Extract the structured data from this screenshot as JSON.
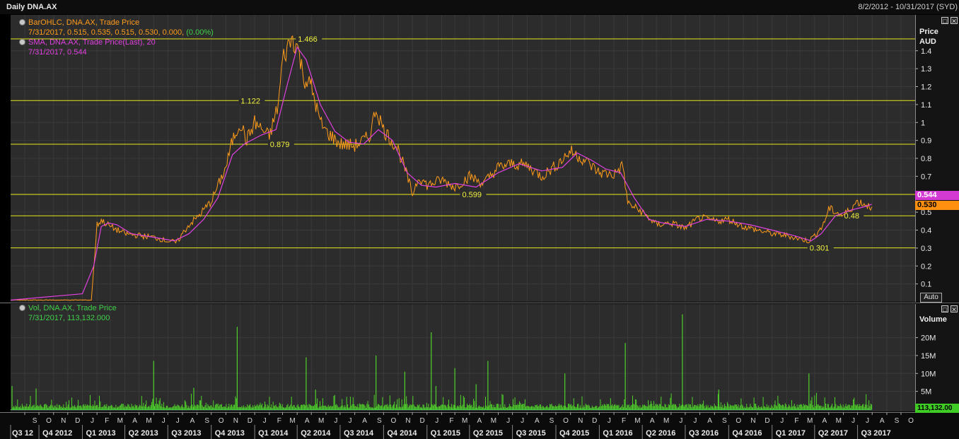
{
  "window": {
    "title": "Daily DNA.AX",
    "date_range": "8/2/2012 - 10/31/2017 (SYD)"
  },
  "price_panel": {
    "legend": [
      {
        "title": "BarOHLC, DNA.AX, Trade Price",
        "detail": "7/31/2017, 0.515, 0.535, 0.515, 0.530, 0.000,",
        "detail_extra": "(0.00%)",
        "color": "#ff9c1a",
        "extra_color": "#3fd14a"
      },
      {
        "title": "SMA, DNA.AX, Trade Price(Last), 20",
        "detail": "7/31/2017, 0.544",
        "color": "#e040e0"
      }
    ],
    "axis_title": "Price",
    "axis_unit": "AUD",
    "auto_label": "Auto",
    "last_sma_tag": "0.544",
    "last_price_tag": "0.530"
  },
  "volume_panel": {
    "legend": {
      "title": "Vol, DNA.AX, Trade Price",
      "detail": "7/31/2017, 113,132.000",
      "color": "#3fd14a"
    },
    "axis_title": "Volume",
    "last_volume_tag": "113,132.00"
  },
  "chart_data": [
    {
      "type": "line",
      "title": "",
      "series": [
        {
          "name": "BarOHLC, DNA.AX, Trade Price",
          "color": "#ff9c1a",
          "x": [
            "2012-08-02",
            "2012-10-01",
            "2012-12-01",
            "2013-01-20",
            "2013-02-01",
            "2013-02-10",
            "2013-03-01",
            "2013-04-01",
            "2013-05-01",
            "2013-06-01",
            "2013-07-01",
            "2013-07-20",
            "2013-08-01",
            "2013-08-15",
            "2013-09-01",
            "2013-10-01",
            "2013-11-01",
            "2013-11-15",
            "2013-12-01",
            "2013-12-15",
            "2014-01-01",
            "2014-02-01",
            "2014-02-20",
            "2014-03-01",
            "2014-03-20",
            "2014-04-01",
            "2014-04-15",
            "2014-05-01",
            "2014-05-20",
            "2014-06-01",
            "2014-07-01",
            "2014-08-01",
            "2014-09-01",
            "2014-09-15",
            "2014-10-01",
            "2014-11-01",
            "2014-11-20",
            "2014-12-01",
            "2014-12-15",
            "2015-01-01",
            "2015-02-01",
            "2015-03-01",
            "2015-04-01",
            "2015-05-01",
            "2015-06-01",
            "2015-07-01",
            "2015-08-01",
            "2015-09-01",
            "2015-10-01",
            "2015-11-01",
            "2015-12-01",
            "2016-01-01",
            "2016-02-01",
            "2016-02-20",
            "2016-03-01",
            "2016-04-01",
            "2016-05-01",
            "2016-06-01",
            "2016-07-01",
            "2016-08-01",
            "2016-09-01",
            "2016-10-01",
            "2016-11-01",
            "2016-12-01",
            "2017-01-01",
            "2017-02-01",
            "2017-03-01",
            "2017-03-20",
            "2017-04-01",
            "2017-04-20",
            "2017-05-01",
            "2017-06-01",
            "2017-07-01",
            "2017-07-31"
          ],
          "y": [
            0.01,
            0.01,
            0.01,
            0.01,
            0.43,
            0.455,
            0.42,
            0.38,
            0.37,
            0.36,
            0.34,
            0.33,
            0.38,
            0.43,
            0.47,
            0.56,
            0.75,
            0.9,
            1.0,
            0.9,
            1.0,
            0.92,
            1.1,
            1.35,
            1.47,
            1.43,
            1.25,
            1.2,
            1.0,
            0.95,
            0.88,
            0.87,
            0.92,
            1.08,
            0.96,
            0.85,
            0.7,
            0.6,
            0.7,
            0.65,
            0.68,
            0.64,
            0.7,
            0.66,
            0.75,
            0.77,
            0.76,
            0.7,
            0.76,
            0.84,
            0.79,
            0.72,
            0.71,
            0.76,
            0.55,
            0.5,
            0.43,
            0.44,
            0.41,
            0.47,
            0.45,
            0.46,
            0.42,
            0.4,
            0.38,
            0.37,
            0.35,
            0.34,
            0.37,
            0.43,
            0.52,
            0.48,
            0.56,
            0.53
          ]
        },
        {
          "name": "SMA, DNA.AX, Trade Price(Last), 20",
          "color": "#e040e0",
          "x": [
            "2012-08-02",
            "2013-01-01",
            "2013-01-25",
            "2013-02-10",
            "2013-02-25",
            "2013-03-15",
            "2013-04-15",
            "2013-06-01",
            "2013-07-15",
            "2013-08-15",
            "2013-09-15",
            "2013-10-15",
            "2013-11-15",
            "2013-12-10",
            "2014-01-15",
            "2014-02-15",
            "2014-03-10",
            "2014-04-01",
            "2014-04-20",
            "2014-05-20",
            "2014-06-20",
            "2014-07-20",
            "2014-08-20",
            "2014-09-20",
            "2014-10-20",
            "2014-11-20",
            "2014-12-20",
            "2015-01-20",
            "2015-03-01",
            "2015-04-15",
            "2015-06-01",
            "2015-07-15",
            "2015-09-01",
            "2015-10-15",
            "2015-11-15",
            "2015-12-15",
            "2016-01-15",
            "2016-02-15",
            "2016-03-15",
            "2016-04-15",
            "2016-05-15",
            "2016-07-01",
            "2016-08-15",
            "2016-10-01",
            "2016-11-15",
            "2017-01-01",
            "2017-02-15",
            "2017-03-25",
            "2017-04-15",
            "2017-05-15",
            "2017-06-15",
            "2017-07-15",
            "2017-07-31"
          ],
          "y": [
            0.01,
            0.045,
            0.2,
            0.42,
            0.44,
            0.43,
            0.38,
            0.36,
            0.34,
            0.38,
            0.46,
            0.58,
            0.82,
            0.88,
            0.93,
            0.96,
            1.2,
            1.42,
            1.35,
            1.1,
            0.95,
            0.89,
            0.88,
            0.96,
            0.9,
            0.72,
            0.65,
            0.64,
            0.66,
            0.64,
            0.72,
            0.77,
            0.73,
            0.75,
            0.83,
            0.79,
            0.74,
            0.72,
            0.58,
            0.46,
            0.44,
            0.42,
            0.46,
            0.45,
            0.43,
            0.4,
            0.37,
            0.34,
            0.38,
            0.48,
            0.51,
            0.53,
            0.544
          ]
        }
      ],
      "horizontal_levels": [
        {
          "value": 1.466,
          "label": "1.466"
        },
        {
          "value": 1.122,
          "label": "1.122"
        },
        {
          "value": 0.879,
          "label": "0.879"
        },
        {
          "value": 0.599,
          "label": "0.599"
        },
        {
          "value": 0.48,
          "label": "0.48"
        },
        {
          "value": 0.301,
          "label": "0.301"
        }
      ],
      "ylim": [
        0,
        1.6
      ],
      "yticks": [
        {
          "v": 0.1,
          "label": "0.1"
        },
        {
          "v": 0.2,
          "label": "0.2"
        },
        {
          "v": 0.3,
          "label": "0.3"
        },
        {
          "v": 0.4,
          "label": "0.4"
        },
        {
          "v": 0.5,
          "label": "0.5"
        },
        {
          "v": 0.6,
          "label": "0.6"
        },
        {
          "v": 0.7,
          "label": "0.7"
        },
        {
          "v": 0.8,
          "label": "0.8"
        },
        {
          "v": 0.9,
          "label": "0.9"
        },
        {
          "v": 1.0,
          "label": "1"
        },
        {
          "v": 1.1,
          "label": "1.1"
        },
        {
          "v": 1.2,
          "label": "1.2"
        },
        {
          "v": 1.3,
          "label": "1.3"
        },
        {
          "v": 1.4,
          "label": "1.4"
        }
      ],
      "xlim": [
        "2012-08-02",
        "2017-10-31"
      ],
      "grid": true
    },
    {
      "type": "bar",
      "title": "",
      "series": [
        {
          "name": "Vol, DNA.AX, Trade Price",
          "color": "#4fd12a"
        }
      ],
      "spikes": [
        {
          "date": "2012-08-05",
          "value": 6.5
        },
        {
          "date": "2012-09-25",
          "value": 5.8
        },
        {
          "date": "2013-06-01",
          "value": 13.5
        },
        {
          "date": "2013-08-25",
          "value": 6.0
        },
        {
          "date": "2013-11-25",
          "value": 23.0
        },
        {
          "date": "2014-04-20",
          "value": 14.5
        },
        {
          "date": "2014-05-10",
          "value": 5.5
        },
        {
          "date": "2014-09-15",
          "value": 15.0
        },
        {
          "date": "2014-11-15",
          "value": 10.5
        },
        {
          "date": "2015-01-10",
          "value": 21.5
        },
        {
          "date": "2015-01-20",
          "value": 6.5
        },
        {
          "date": "2015-03-01",
          "value": 11.5
        },
        {
          "date": "2015-04-15",
          "value": 7.0
        },
        {
          "date": "2015-05-10",
          "value": 13.5
        },
        {
          "date": "2015-10-20",
          "value": 10.0
        },
        {
          "date": "2016-02-25",
          "value": 18.5
        },
        {
          "date": "2016-06-25",
          "value": 26.5
        },
        {
          "date": "2016-09-10",
          "value": 5.5
        },
        {
          "date": "2017-03-20",
          "value": 10.0
        }
      ],
      "ylim": [
        0,
        28
      ],
      "yticks": [
        {
          "v": 5,
          "label": "5M"
        },
        {
          "v": 10,
          "label": "10M"
        },
        {
          "v": 15,
          "label": "15M"
        },
        {
          "v": 20,
          "label": "20M"
        }
      ],
      "ylabel": "Volume",
      "grid": true
    }
  ],
  "x_axis": {
    "month_ticks": [
      {
        "date": "2012-09-01",
        "label": "S"
      },
      {
        "date": "2012-10-01",
        "label": "O"
      },
      {
        "date": "2012-11-01",
        "label": "N"
      },
      {
        "date": "2012-12-01",
        "label": "D"
      },
      {
        "date": "2013-01-01",
        "label": "J"
      },
      {
        "date": "2013-02-01",
        "label": "F"
      },
      {
        "date": "2013-03-01",
        "label": "M"
      },
      {
        "date": "2013-04-01",
        "label": "A"
      },
      {
        "date": "2013-05-01",
        "label": "M"
      },
      {
        "date": "2013-06-01",
        "label": "J"
      },
      {
        "date": "2013-07-01",
        "label": "J"
      },
      {
        "date": "2013-08-01",
        "label": "A"
      },
      {
        "date": "2013-09-01",
        "label": "S"
      },
      {
        "date": "2013-10-01",
        "label": "O"
      },
      {
        "date": "2013-11-01",
        "label": "N"
      },
      {
        "date": "2013-12-01",
        "label": "D"
      },
      {
        "date": "2014-01-01",
        "label": "J"
      },
      {
        "date": "2014-02-01",
        "label": "F"
      },
      {
        "date": "2014-03-01",
        "label": "M"
      },
      {
        "date": "2014-04-01",
        "label": "A"
      },
      {
        "date": "2014-05-01",
        "label": "M"
      },
      {
        "date": "2014-06-01",
        "label": "J"
      },
      {
        "date": "2014-07-01",
        "label": "J"
      },
      {
        "date": "2014-08-01",
        "label": "A"
      },
      {
        "date": "2014-09-01",
        "label": "S"
      },
      {
        "date": "2014-10-01",
        "label": "O"
      },
      {
        "date": "2014-11-01",
        "label": "N"
      },
      {
        "date": "2014-12-01",
        "label": "D"
      },
      {
        "date": "2015-01-01",
        "label": "J"
      },
      {
        "date": "2015-02-01",
        "label": "F"
      },
      {
        "date": "2015-03-01",
        "label": "M"
      },
      {
        "date": "2015-04-01",
        "label": "A"
      },
      {
        "date": "2015-05-01",
        "label": "M"
      },
      {
        "date": "2015-06-01",
        "label": "J"
      },
      {
        "date": "2015-07-01",
        "label": "J"
      },
      {
        "date": "2015-08-01",
        "label": "A"
      },
      {
        "date": "2015-09-01",
        "label": "S"
      },
      {
        "date": "2015-10-01",
        "label": "O"
      },
      {
        "date": "2015-11-01",
        "label": "N"
      },
      {
        "date": "2015-12-01",
        "label": "D"
      },
      {
        "date": "2016-01-01",
        "label": "J"
      },
      {
        "date": "2016-02-01",
        "label": "F"
      },
      {
        "date": "2016-03-01",
        "label": "M"
      },
      {
        "date": "2016-04-01",
        "label": "A"
      },
      {
        "date": "2016-05-01",
        "label": "M"
      },
      {
        "date": "2016-06-01",
        "label": "J"
      },
      {
        "date": "2016-07-01",
        "label": "J"
      },
      {
        "date": "2016-08-01",
        "label": "A"
      },
      {
        "date": "2016-09-01",
        "label": "S"
      },
      {
        "date": "2016-10-01",
        "label": "O"
      },
      {
        "date": "2016-11-01",
        "label": "N"
      },
      {
        "date": "2016-12-01",
        "label": "D"
      },
      {
        "date": "2017-01-01",
        "label": "J"
      },
      {
        "date": "2017-02-01",
        "label": "F"
      },
      {
        "date": "2017-03-01",
        "label": "M"
      },
      {
        "date": "2017-04-01",
        "label": "A"
      },
      {
        "date": "2017-05-01",
        "label": "M"
      },
      {
        "date": "2017-06-01",
        "label": "J"
      },
      {
        "date": "2017-07-01",
        "label": "J"
      },
      {
        "date": "2017-08-01",
        "label": "A"
      },
      {
        "date": "2017-09-01",
        "label": "S"
      },
      {
        "date": "2017-10-01",
        "label": "O"
      }
    ],
    "quarter_ticks": [
      {
        "date": "2012-08-02",
        "label": "Q3 12"
      },
      {
        "date": "2012-10-01",
        "label": "Q4 2012"
      },
      {
        "date": "2013-01-01",
        "label": "Q1 2013"
      },
      {
        "date": "2013-04-01",
        "label": "Q2 2013"
      },
      {
        "date": "2013-07-01",
        "label": "Q3 2013"
      },
      {
        "date": "2013-10-01",
        "label": "Q4 2013"
      },
      {
        "date": "2014-01-01",
        "label": "Q1 2014"
      },
      {
        "date": "2014-04-01",
        "label": "Q2 2014"
      },
      {
        "date": "2014-07-01",
        "label": "Q3 2014"
      },
      {
        "date": "2014-10-01",
        "label": "Q4 2014"
      },
      {
        "date": "2015-01-01",
        "label": "Q1 2015"
      },
      {
        "date": "2015-04-01",
        "label": "Q2 2015"
      },
      {
        "date": "2015-07-01",
        "label": "Q3 2015"
      },
      {
        "date": "2015-10-01",
        "label": "Q4 2015"
      },
      {
        "date": "2016-01-01",
        "label": "Q1 2016"
      },
      {
        "date": "2016-04-01",
        "label": "Q2 2016"
      },
      {
        "date": "2016-07-01",
        "label": "Q3 2016"
      },
      {
        "date": "2016-10-01",
        "label": "Q4 2016"
      },
      {
        "date": "2017-01-01",
        "label": "Q1 2017"
      },
      {
        "date": "2017-04-01",
        "label": "Q2 2017"
      },
      {
        "date": "2017-07-01",
        "label": "Q3 2017"
      }
    ]
  }
}
